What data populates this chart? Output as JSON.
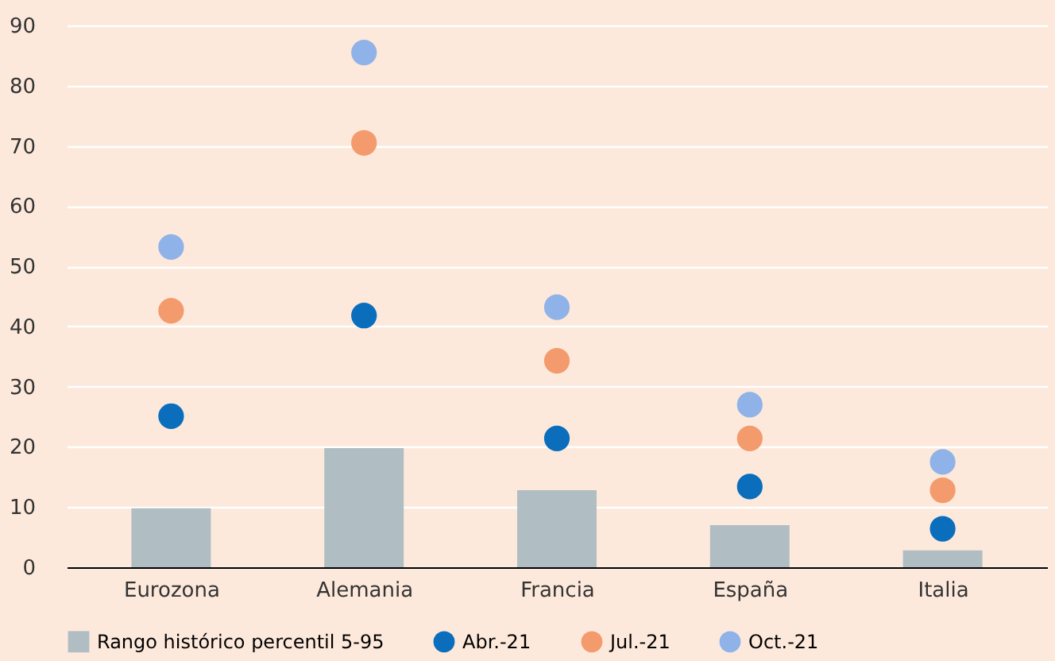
{
  "chart_data": {
    "type": "bar",
    "categories": [
      "Eurozona",
      "Alemania",
      "Francia",
      "España",
      "Italia"
    ],
    "series": [
      {
        "name": "Rango histórico percentil 5-95",
        "color": "#b0bec3",
        "values": [
          9.8,
          19.8,
          12.8,
          7.0,
          2.8
        ]
      },
      {
        "name": "Abr.-21",
        "type": "scatter",
        "color": "#0a6ebd",
        "values": [
          25.1,
          41.8,
          21.4,
          13.4,
          6.4
        ]
      },
      {
        "name": "Jul.-21",
        "type": "scatter",
        "color": "#f49b6e",
        "values": [
          42.6,
          70.5,
          34.3,
          21.4,
          12.8
        ]
      },
      {
        "name": "Oct.-21",
        "type": "scatter",
        "color": "#8fb3e8",
        "values": [
          53.2,
          85.5,
          43.2,
          27.0,
          17.5
        ]
      }
    ],
    "ylim": [
      0,
      90
    ],
    "yticks": [
      0,
      10,
      20,
      30,
      40,
      50,
      60,
      70,
      80,
      90
    ],
    "grid": "y",
    "legend": "bottom",
    "marker": "circle"
  }
}
